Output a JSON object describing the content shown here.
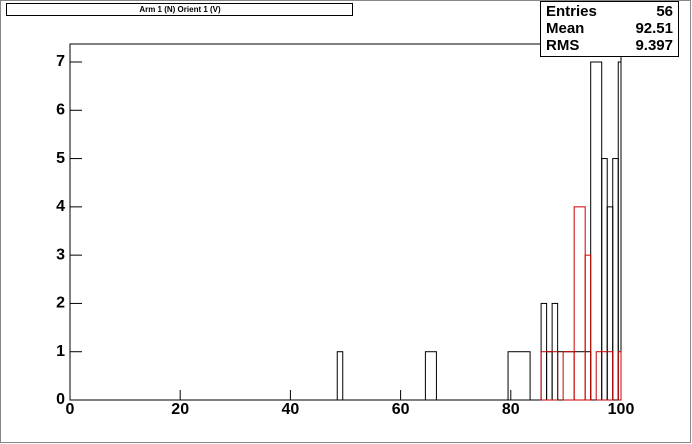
{
  "chart_data": {
    "type": "histogram",
    "title": "Arm 1 (N) Orient 1 (V)",
    "series": [
      {
        "color": "#000000",
        "bins": [
          0,
          48.5,
          49.5,
          64.5,
          66.5,
          79.5,
          83.5,
          85.5,
          86.5,
          87.5,
          88.5,
          94.5,
          96.5,
          97.5,
          98.5,
          99.5,
          100
        ],
        "values": [
          0,
          1,
          0,
          1,
          0,
          1,
          0,
          2,
          1,
          2,
          1,
          7,
          5,
          4,
          5,
          7
        ]
      },
      {
        "color": "#cc0000",
        "bins": [
          0,
          85.5,
          88.5,
          89.5,
          91.5,
          93.5,
          94.5,
          95.5,
          98.5,
          99.5,
          100
        ],
        "values": [
          0,
          1,
          0,
          1,
          4,
          3,
          0,
          1,
          0,
          1
        ]
      }
    ],
    "xlim": [
      0,
      100
    ],
    "xticks": [
      0,
      20,
      40,
      60,
      80,
      100
    ],
    "ylim": [
      0,
      7
    ],
    "yticks": [
      0,
      1,
      2,
      3,
      4,
      5,
      6,
      7
    ],
    "stats": [
      {
        "label": "Entries",
        "value": 56
      },
      {
        "label": "Mean",
        "value": 92.51
      },
      {
        "label": "RMS",
        "value": 9.397
      }
    ]
  }
}
